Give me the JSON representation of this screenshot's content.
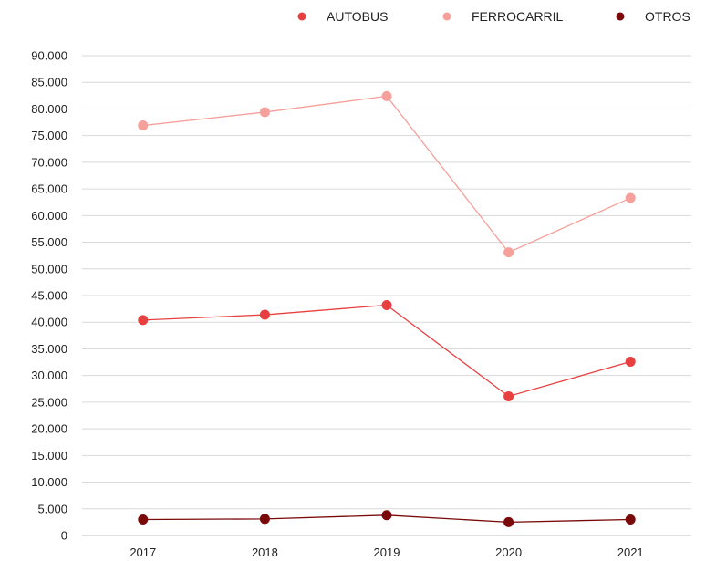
{
  "chart_data": {
    "type": "line",
    "categories": [
      "2017",
      "2018",
      "2019",
      "2020",
      "2021"
    ],
    "series": [
      {
        "name": "AUTOBUS",
        "color": "#e84040",
        "values": [
          40400,
          41400,
          43200,
          26100,
          32600
        ]
      },
      {
        "name": "FERROCARRIL",
        "color": "#f5a09a",
        "values": [
          76900,
          79400,
          82400,
          53100,
          63300
        ]
      },
      {
        "name": "OTROS",
        "color": "#7a0a0a",
        "values": [
          3000,
          3100,
          3800,
          2500,
          3000
        ]
      }
    ],
    "ylim": [
      0,
      90000
    ],
    "ytick_step": 5000,
    "ytick_labels": [
      "0",
      "5.000",
      "10.000",
      "15.000",
      "20.000",
      "25.000",
      "30.000",
      "35.000",
      "40.000",
      "45.000",
      "50.000",
      "55.000",
      "60.000",
      "65.000",
      "70.000",
      "75.000",
      "80.000",
      "85.000",
      "90.000"
    ],
    "grid": "horizontal",
    "legend_position": "top-right",
    "title": "",
    "xlabel": "",
    "ylabel": ""
  }
}
